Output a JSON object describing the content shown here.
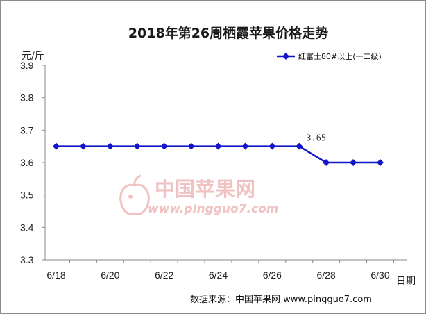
{
  "chart_data": {
    "type": "line",
    "title": "2018年第26周栖霞苹果价格走势",
    "ylabel": "元/斤",
    "xlabel": "日期",
    "ylim": [
      3.3,
      3.9
    ],
    "yticks": [
      "3.3",
      "3.4",
      "3.5",
      "3.6",
      "3.7",
      "3.8",
      "3.9"
    ],
    "x": [
      "6/18",
      "6/19",
      "6/20",
      "6/21",
      "6/22",
      "6/23",
      "6/24",
      "6/25",
      "6/26",
      "6/27",
      "6/28",
      "6/29",
      "6/30"
    ],
    "xtick_labels": [
      "6/18",
      "6/20",
      "6/22",
      "6/24",
      "6/26",
      "6/28",
      "6/30"
    ],
    "series": [
      {
        "name": "红富士80#以上(一二级)",
        "color": "#1414c8",
        "values": [
          3.65,
          3.65,
          3.65,
          3.65,
          3.65,
          3.65,
          3.65,
          3.65,
          3.65,
          3.65,
          3.6,
          3.6,
          3.6
        ]
      }
    ],
    "annotations": [
      {
        "x": "6/27",
        "text": "3.65"
      }
    ],
    "grid": false,
    "legend_position": "top-right"
  },
  "watermark": {
    "name": "中国苹果网",
    "url": "www.pingguo7.com",
    "color": "#f1c2c2"
  },
  "source": "数据来源：中国苹果网 www.pingguo7.com"
}
